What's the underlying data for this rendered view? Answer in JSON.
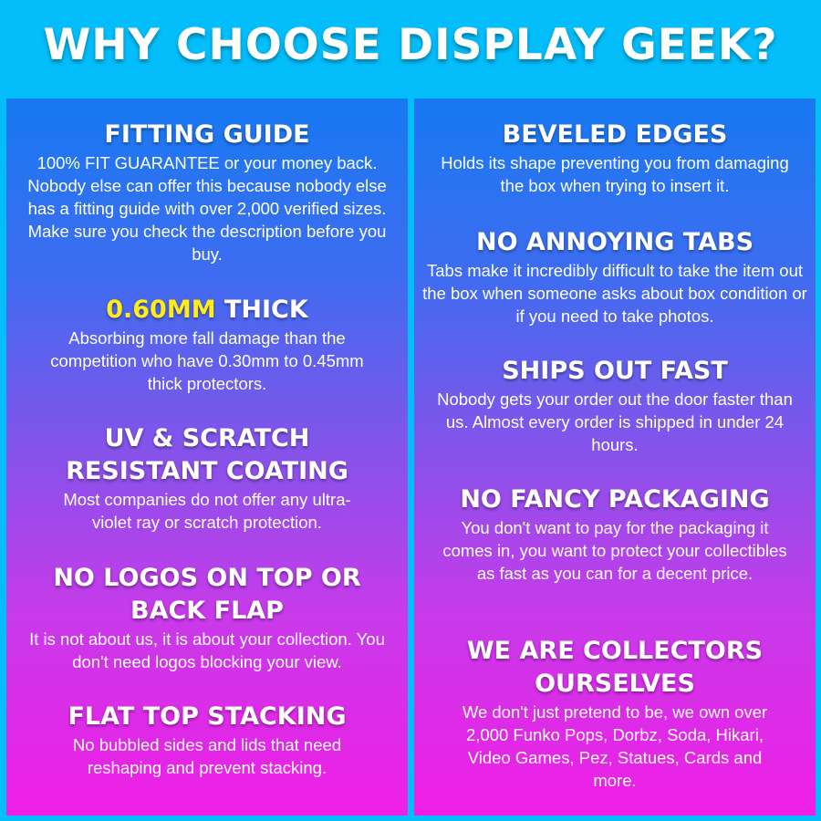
{
  "title": "WHY CHOOSE DISPLAY GEEK?",
  "colors": {
    "background": "#04bdfb",
    "gradient_top": "#1779f2",
    "gradient_bottom": "#f01ee6",
    "highlight": "#ffec1a"
  },
  "left": [
    {
      "heading": "FITTING GUIDE",
      "body": "100% FIT GUARANTEE or your money back. Nobody else can offer this because nobody else has a fitting guide with over 2,000 verified sizes. Make sure you check the description before you buy."
    },
    {
      "heading_highlight": "0.60MM",
      "heading": " THICK",
      "body": "Absorbing more fall damage than the competition who have 0.30mm to 0.45mm thick protectors."
    },
    {
      "heading": "UV & SCRATCH RESISTANT COATING",
      "body": "Most companies do not offer any ultra-violet ray or scratch protection."
    },
    {
      "heading": "NO LOGOS ON TOP OR BACK FLAP",
      "body": "It is not about us, it is about your collection. You don't need logos blocking your view."
    },
    {
      "heading": "FLAT TOP STACKING",
      "body": "No bubbled sides and lids that need reshaping and prevent stacking."
    }
  ],
  "right": [
    {
      "heading": "BEVELED EDGES",
      "body": "Holds its shape preventing you from damaging the box when trying to insert it."
    },
    {
      "heading": "NO ANNOYING TABS",
      "body": "Tabs make it incredibly difficult to take the item out the box when someone asks about box condition or if you need to take photos."
    },
    {
      "heading": "SHIPS OUT FAST",
      "body": "Nobody gets your order out the door faster than us. Almost every order is shipped in under 24 hours."
    },
    {
      "heading": "NO FANCY PACKAGING",
      "body": "You don't want to pay for the packaging it comes in, you want to protect your collectibles as fast as you can for a decent price."
    },
    {
      "heading": "WE ARE COLLECTORS OURSELVES",
      "body": "We don't just pretend to be, we own over 2,000 Funko Pops, Dorbz, Soda, Hikari, Video Games, Pez, Statues, Cards and more."
    }
  ]
}
